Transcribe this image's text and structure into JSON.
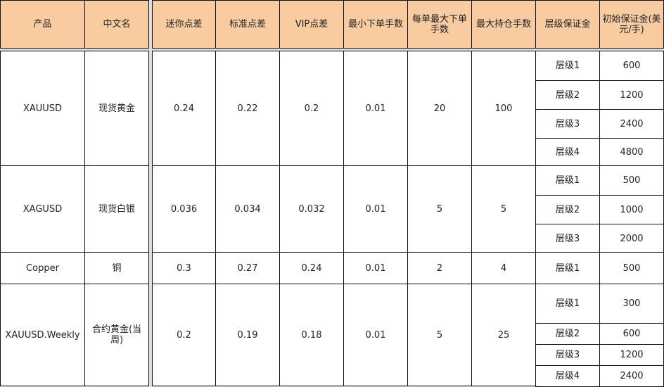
{
  "colors": {
    "header_bg": "#f8cba0",
    "border": "#111111",
    "gap": "#dcdde3"
  },
  "headers": [
    "产品",
    "中文名",
    "迷你点差",
    "标准点差",
    "VIP点差",
    "最小下单手数",
    "每单最大下单手数",
    "最大持仓手数",
    "层级保证金",
    "初始保证金(美元/手)"
  ],
  "rows": [
    {
      "product": "XAUUSD",
      "name_cn": "现货黄金",
      "mini_spread": "0.24",
      "std_spread": "0.22",
      "vip_spread": "0.2",
      "min_lot": "0.01",
      "max_lot_per_order": "20",
      "max_position": "100",
      "tiers": [
        {
          "tier": "层级1",
          "margin": "600"
        },
        {
          "tier": "层级2",
          "margin": "1200"
        },
        {
          "tier": "层级3",
          "margin": "2400"
        },
        {
          "tier": "层级4",
          "margin": "4800"
        }
      ]
    },
    {
      "product": "XAGUSD",
      "name_cn": "现货白银",
      "mini_spread": "0.036",
      "std_spread": "0.034",
      "vip_spread": "0.032",
      "min_lot": "0.01",
      "max_lot_per_order": "5",
      "max_position": "5",
      "tiers": [
        {
          "tier": "层级1",
          "margin": "500"
        },
        {
          "tier": "层级2",
          "margin": "1000"
        },
        {
          "tier": "层级3",
          "margin": "2000"
        }
      ]
    },
    {
      "product": "Copper",
      "name_cn": "铜",
      "mini_spread": "0.3",
      "std_spread": "0.27",
      "vip_spread": "0.24",
      "min_lot": "0.01",
      "max_lot_per_order": "2",
      "max_position": "4",
      "tiers": [
        {
          "tier": "层级1",
          "margin": "500"
        }
      ]
    },
    {
      "product": "XAUUSD.Weekly",
      "name_cn": "合约黄金(当周)",
      "mini_spread": "0.2",
      "std_spread": "0.19",
      "vip_spread": "0.18",
      "min_lot": "0.01",
      "max_lot_per_order": "5",
      "max_position": "25",
      "tiers": [
        {
          "tier": "层级1",
          "margin": "300"
        },
        {
          "tier": "层级2",
          "margin": "600"
        },
        {
          "tier": "层级3",
          "margin": "1200"
        },
        {
          "tier": "层级4",
          "margin": "2400"
        }
      ]
    }
  ]
}
